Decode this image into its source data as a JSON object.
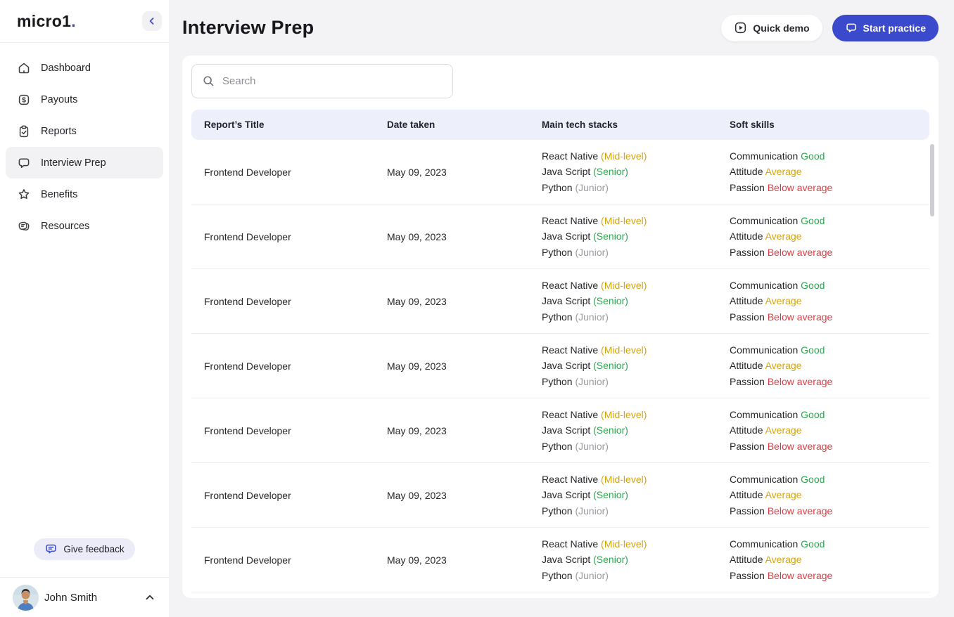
{
  "brand": {
    "logo_text": "micro1",
    "logo_dot": ".",
    "accent": "#3b49cd"
  },
  "sidebar": {
    "items": [
      {
        "label": "Dashboard",
        "icon": "home-icon",
        "active": false
      },
      {
        "label": "Payouts",
        "icon": "dollar-icon",
        "active": false
      },
      {
        "label": "Reports",
        "icon": "clipboard-icon",
        "active": false
      },
      {
        "label": "Interview Prep",
        "icon": "chat-icon",
        "active": true
      },
      {
        "label": "Benefits",
        "icon": "star-icon",
        "active": false
      },
      {
        "label": "Resources",
        "icon": "cards-icon",
        "active": false
      }
    ],
    "feedback_label": "Give feedback",
    "user": {
      "name": "John Smith"
    }
  },
  "header": {
    "title": "Interview Prep",
    "quick_demo_label": "Quick demo",
    "start_practice_label": "Start practice"
  },
  "search": {
    "placeholder": "Search"
  },
  "table": {
    "columns": [
      "Report’s Title",
      "Date taken",
      "Main tech stacks",
      "Soft skills"
    ],
    "rows": [
      {
        "title": "Frontend Developer",
        "date": "May 09, 2023",
        "stacks": [
          {
            "name": "React Native",
            "level": "(Mid-level)",
            "color": "amber"
          },
          {
            "name": "Java Script",
            "level": "(Senior)",
            "color": "green"
          },
          {
            "name": "Python",
            "level": "(Junior)",
            "color": "gray"
          }
        ],
        "skills": [
          {
            "name": "Communication",
            "rating": "Good",
            "color": "green"
          },
          {
            "name": "Attitude",
            "rating": "Average",
            "color": "amber"
          },
          {
            "name": "Passion",
            "rating": "Below average",
            "color": "red"
          }
        ]
      },
      {
        "title": "Frontend Developer",
        "date": "May 09, 2023",
        "stacks": [
          {
            "name": "React Native",
            "level": "(Mid-level)",
            "color": "amber"
          },
          {
            "name": "Java Script",
            "level": "(Senior)",
            "color": "green"
          },
          {
            "name": "Python",
            "level": "(Junior)",
            "color": "gray"
          }
        ],
        "skills": [
          {
            "name": "Communication",
            "rating": "Good",
            "color": "green"
          },
          {
            "name": "Attitude",
            "rating": "Average",
            "color": "amber"
          },
          {
            "name": "Passion",
            "rating": "Below average",
            "color": "red"
          }
        ]
      },
      {
        "title": "Frontend Developer",
        "date": "May 09, 2023",
        "stacks": [
          {
            "name": "React Native",
            "level": "(Mid-level)",
            "color": "amber"
          },
          {
            "name": "Java Script",
            "level": "(Senior)",
            "color": "green"
          },
          {
            "name": "Python",
            "level": "(Junior)",
            "color": "gray"
          }
        ],
        "skills": [
          {
            "name": "Communication",
            "rating": "Good",
            "color": "green"
          },
          {
            "name": "Attitude",
            "rating": "Average",
            "color": "amber"
          },
          {
            "name": "Passion",
            "rating": "Below average",
            "color": "red"
          }
        ]
      },
      {
        "title": "Frontend Developer",
        "date": "May 09, 2023",
        "stacks": [
          {
            "name": "React Native",
            "level": "(Mid-level)",
            "color": "amber"
          },
          {
            "name": "Java Script",
            "level": "(Senior)",
            "color": "green"
          },
          {
            "name": "Python",
            "level": "(Junior)",
            "color": "gray"
          }
        ],
        "skills": [
          {
            "name": "Communication",
            "rating": "Good",
            "color": "green"
          },
          {
            "name": "Attitude",
            "rating": "Average",
            "color": "amber"
          },
          {
            "name": "Passion",
            "rating": "Below average",
            "color": "red"
          }
        ]
      },
      {
        "title": "Frontend Developer",
        "date": "May 09, 2023",
        "stacks": [
          {
            "name": "React Native",
            "level": "(Mid-level)",
            "color": "amber"
          },
          {
            "name": "Java Script",
            "level": "(Senior)",
            "color": "green"
          },
          {
            "name": "Python",
            "level": "(Junior)",
            "color": "gray"
          }
        ],
        "skills": [
          {
            "name": "Communication",
            "rating": "Good",
            "color": "green"
          },
          {
            "name": "Attitude",
            "rating": "Average",
            "color": "amber"
          },
          {
            "name": "Passion",
            "rating": "Below average",
            "color": "red"
          }
        ]
      },
      {
        "title": "Frontend Developer",
        "date": "May 09, 2023",
        "stacks": [
          {
            "name": "React Native",
            "level": "(Mid-level)",
            "color": "amber"
          },
          {
            "name": "Java Script",
            "level": "(Senior)",
            "color": "green"
          },
          {
            "name": "Python",
            "level": "(Junior)",
            "color": "gray"
          }
        ],
        "skills": [
          {
            "name": "Communication",
            "rating": "Good",
            "color": "green"
          },
          {
            "name": "Attitude",
            "rating": "Average",
            "color": "amber"
          },
          {
            "name": "Passion",
            "rating": "Below average",
            "color": "red"
          }
        ]
      },
      {
        "title": "Frontend Developer",
        "date": "May 09, 2023",
        "stacks": [
          {
            "name": "React Native",
            "level": "(Mid-level)",
            "color": "amber"
          },
          {
            "name": "Java Script",
            "level": "(Senior)",
            "color": "green"
          },
          {
            "name": "Python",
            "level": "(Junior)",
            "color": "gray"
          }
        ],
        "skills": [
          {
            "name": "Communication",
            "rating": "Good",
            "color": "green"
          },
          {
            "name": "Attitude",
            "rating": "Average",
            "color": "amber"
          },
          {
            "name": "Passion",
            "rating": "Below average",
            "color": "red"
          }
        ]
      }
    ]
  },
  "colors": {
    "green": "#2ea44f",
    "amber": "#d9a406",
    "red": "#dc3d43",
    "gray": "#9b9ba1",
    "primary": "#3b49cd",
    "header_bg": "#edeffb"
  }
}
